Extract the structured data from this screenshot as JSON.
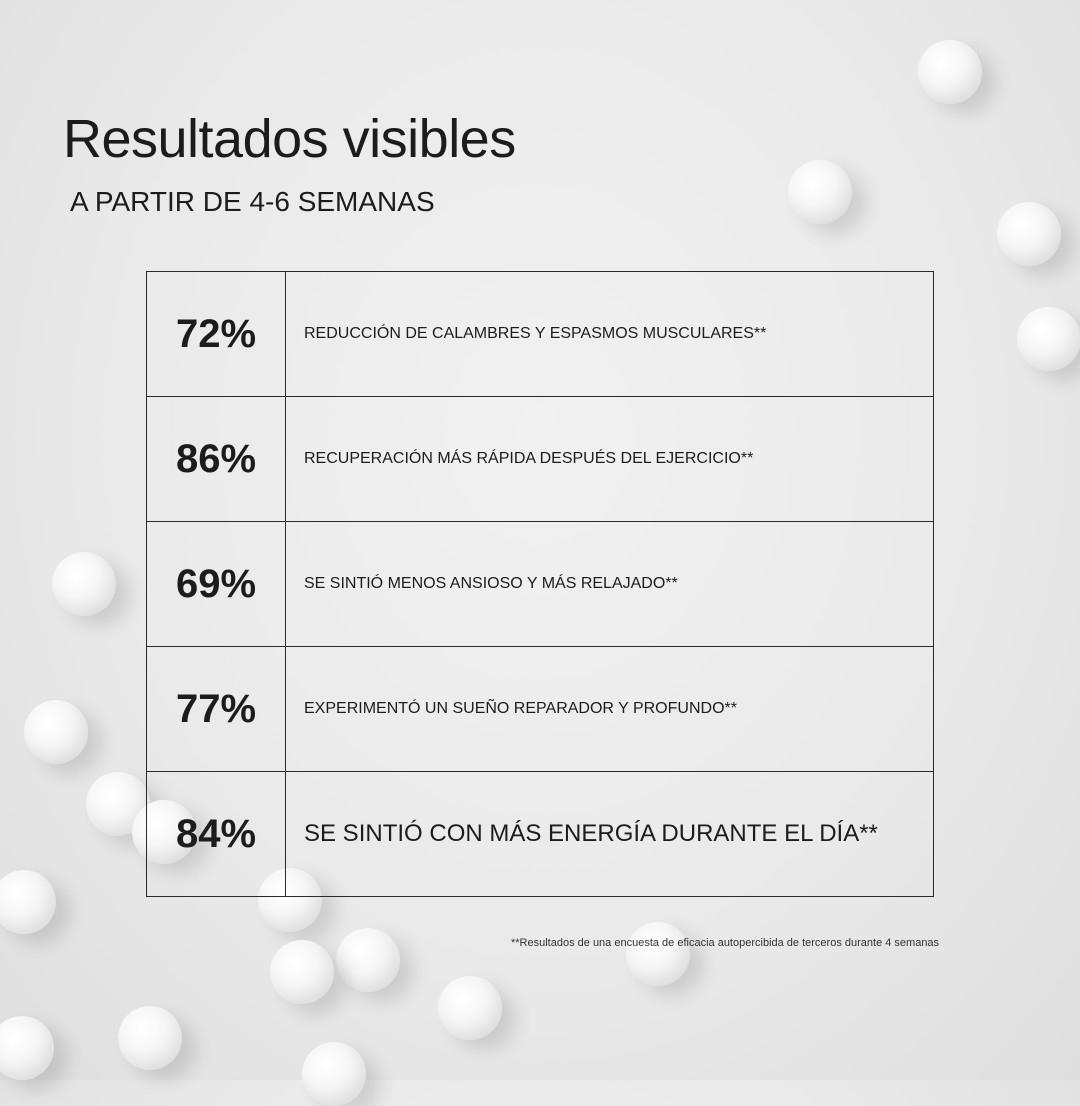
{
  "title": "Resultados visibles",
  "subtitle": "A PARTIR DE 4-6 SEMANAS",
  "rows": [
    {
      "percent": "72%",
      "text": "REDUCCIÓN DE CALAMBRES Y ESPASMOS MUSCULARES**"
    },
    {
      "percent": "86%",
      "text": "RECUPERACIÓN MÁS RÁPIDA DESPUÉS DEL EJERCICIO**"
    },
    {
      "percent": "69%",
      "text": "SE SINTIÓ MENOS ANSIOSO Y MÁS RELAJADO**"
    },
    {
      "percent": "77%",
      "text": "EXPERIMENTÓ UN SUEÑO REPARADOR Y PROFUNDO**"
    },
    {
      "percent": "84%",
      "text": "SE SINTIÓ CON MÁS ENERGÍA DURANTE EL DÍA**"
    }
  ],
  "footnote": "**Resultados de una encuesta de eficacia autopercibida de terceros durante 4 semanas"
}
